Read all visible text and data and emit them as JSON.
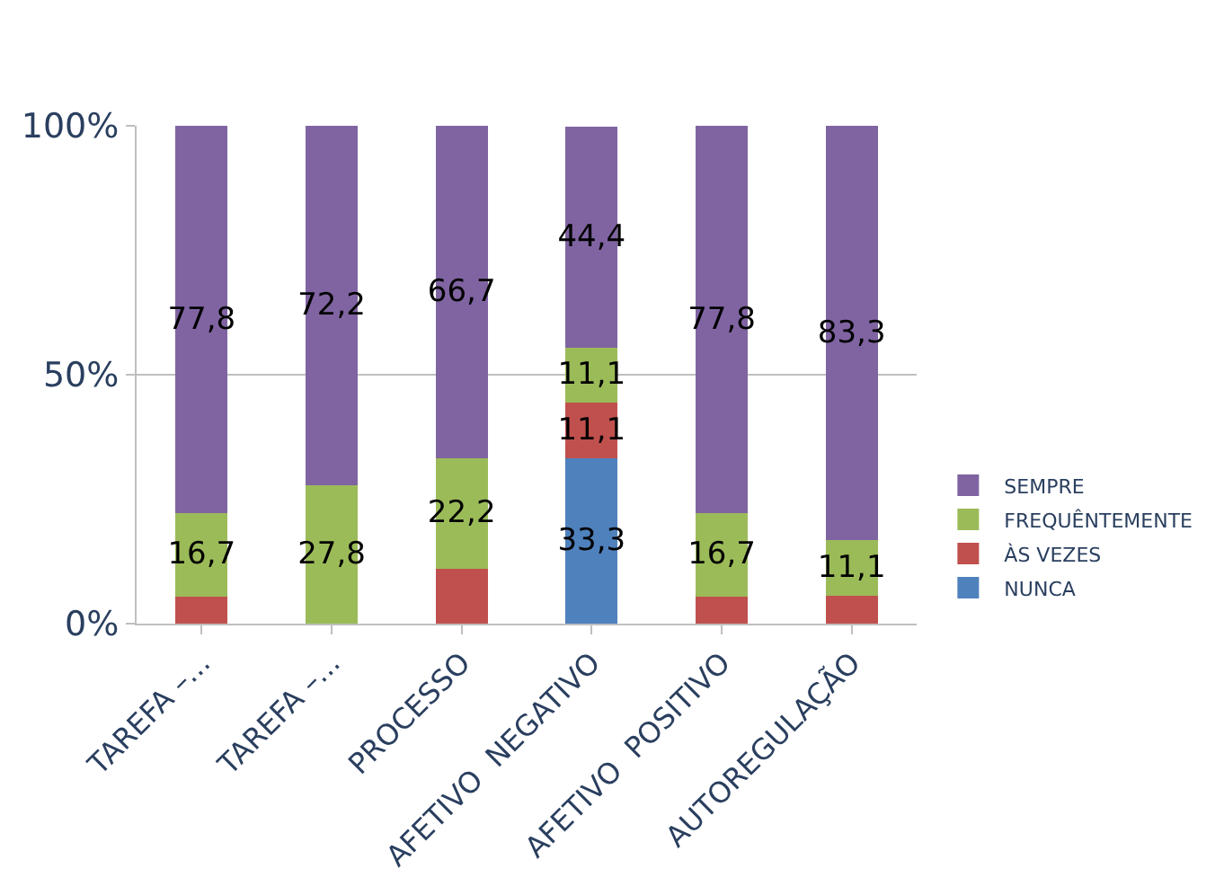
{
  "chart_data": {
    "type": "bar",
    "stacked": true,
    "categories": [
      "TAREFA –...",
      "TAREFA –...",
      "PROCESSO",
      "AFETIVO  NEGATIVO",
      "AFETIVO  POSITIVO",
      "AUTOREGULAÇÃO"
    ],
    "series": [
      {
        "name": "NUNCA",
        "color": "#4f81bd",
        "values": [
          0,
          0,
          0,
          33.3,
          0,
          0
        ],
        "value_labels": [
          null,
          null,
          null,
          "33,3",
          null,
          null
        ]
      },
      {
        "name": "ÀS VEZES",
        "color": "#c0504d",
        "values": [
          5.5,
          0,
          11.1,
          11.1,
          5.5,
          5.6
        ],
        "value_labels": [
          null,
          null,
          null,
          "11,1",
          null,
          null
        ]
      },
      {
        "name": "FREQUÊNTEMENTE",
        "color": "#9bbb59",
        "values": [
          16.7,
          27.8,
          22.2,
          11.1,
          16.7,
          11.1
        ],
        "value_labels": [
          "16,7",
          "27,8",
          "22,2",
          "11,1",
          "16,7",
          "11,1"
        ]
      },
      {
        "name": "SEMPRE",
        "color": "#8064a2",
        "values": [
          77.8,
          72.2,
          66.7,
          44.4,
          77.8,
          83.3
        ],
        "value_labels": [
          "77,8",
          "72,2",
          "66,7",
          "44,4",
          "77,8",
          "83,3"
        ]
      }
    ],
    "ylim": [
      0,
      100
    ],
    "yticks": [
      {
        "value": 0,
        "label": "0%"
      },
      {
        "value": 50,
        "label": "50%"
      },
      {
        "value": 100,
        "label": "100%"
      }
    ],
    "grid": "y",
    "legend": "right"
  }
}
